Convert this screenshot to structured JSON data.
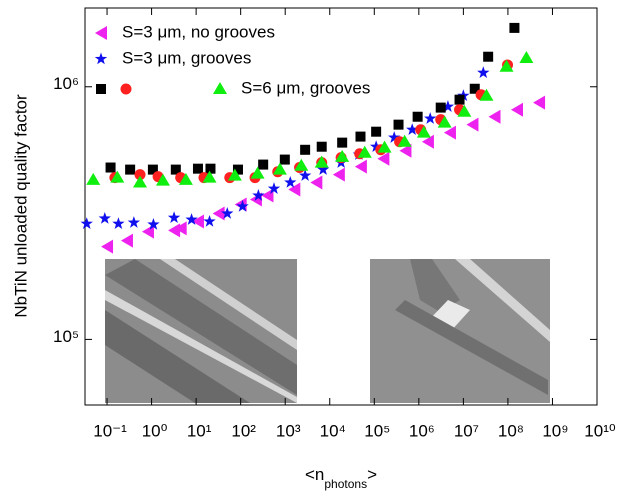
{
  "chart_data": {
    "type": "scatter",
    "y_label": "NbTiN unloaded quality factor",
    "x_label": "<n",
    "x_label_sub": "photons",
    "x_label_end": ">",
    "log_x": true,
    "log_y": true,
    "xlim": [
      0.032,
      10000000000
    ],
    "ylim": [
      55000,
      2050000
    ],
    "xticks": [
      {
        "value": 0.1,
        "label": "10⁻¹"
      },
      {
        "value": 1,
        "label": "10⁰"
      },
      {
        "value": 10,
        "label": "10¹"
      },
      {
        "value": 100,
        "label": "10²"
      },
      {
        "value": 1000,
        "label": "10³"
      },
      {
        "value": 10000,
        "label": "10⁴"
      },
      {
        "value": 100000,
        "label": "10⁵"
      },
      {
        "value": 1000000,
        "label": "10⁶"
      },
      {
        "value": 10000000,
        "label": "10⁷"
      },
      {
        "value": 100000000,
        "label": "10⁸"
      },
      {
        "value": 1000000000,
        "label": "10⁹"
      },
      {
        "value": 10000000000,
        "label": "10¹⁰"
      }
    ],
    "yticks": [
      {
        "value": 100000,
        "label": "10⁵"
      },
      {
        "value": 1000000,
        "label": "10⁶"
      }
    ],
    "series": [
      {
        "name": "S=3 μm, no grooves",
        "color": "#ee22ee",
        "marker": "triangle-left",
        "x": [
          0.1,
          0.28,
          0.83,
          3.2,
          4.5,
          11,
          32,
          100,
          220,
          400,
          1600,
          5000,
          16000,
          50000,
          160000,
          500000,
          1600000,
          5000000,
          16000000,
          50000000,
          160000000,
          500000000
        ],
        "values": [
          233000,
          246000,
          267000,
          270000,
          275000,
          293000,
          315000,
          342000,
          358000,
          371000,
          392000,
          418000,
          449000,
          483000,
          519000,
          558000,
          606000,
          658000,
          708000,
          761000,
          811000,
          865000
        ]
      },
      {
        "name": "S=3 μm, grooves",
        "color": "#1010ee",
        "marker": "star",
        "x": [
          0.035,
          0.089,
          0.18,
          0.4,
          1.1,
          3.2,
          7.9,
          20,
          50,
          110,
          250,
          560,
          1300,
          2800,
          7100,
          18000,
          45000,
          110000,
          280000,
          710000,
          1800000,
          4500000,
          10000000,
          28000000
        ],
        "values": [
          287000,
          301000,
          287000,
          290000,
          285000,
          303000,
          298000,
          293000,
          315000,
          336000,
          371000,
          395000,
          418000,
          445000,
          470000,
          501000,
          539000,
          579000,
          629000,
          676000,
          748000,
          834000,
          921000,
          1136000
        ]
      },
      {
        "color": "#000000",
        "marker": "square",
        "x": [
          0.12,
          0.33,
          1.07,
          3.5,
          11,
          21,
          87,
          320,
          980,
          2800,
          6600,
          19000,
          49000,
          110000,
          350000,
          940000,
          3100000,
          8200000,
          18000000,
          36000000,
          140000000
        ],
        "values": [
          479000,
          470000,
          470000,
          470000,
          474000,
          474000,
          470000,
          492000,
          515000,
          563000,
          579000,
          601000,
          635000,
          664000,
          708000,
          761000,
          827000,
          889000,
          982000,
          1315000,
          1710000
        ]
      },
      {
        "color": "#ff2020",
        "marker": "circle",
        "x": [
          0.15,
          0.55,
          1.4,
          4.5,
          15,
          57,
          210,
          680,
          2100,
          6600,
          18000,
          47000,
          140000,
          370000,
          1100000,
          3100000,
          8200000,
          25000000,
          98000000
        ],
        "values": [
          437000,
          449000,
          441000,
          437000,
          437000,
          437000,
          437000,
          461000,
          479000,
          501000,
          524000,
          543000,
          563000,
          606000,
          676000,
          741000,
          811000,
          930000,
          1220000
        ]
      },
      {
        "name": "S=6 μm, grooves",
        "color": "#10ee10",
        "marker": "triangle-up",
        "x": [
          0.049,
          0.17,
          0.55,
          1.8,
          5.9,
          20,
          74,
          240,
          760,
          2300,
          6600,
          19000,
          61000,
          170000,
          480000,
          1300000,
          3800000,
          10500000,
          33000000,
          93000000,
          260000000
        ],
        "values": [
          428000,
          437000,
          418000,
          425000,
          428000,
          437000,
          445000,
          453000,
          470000,
          487000,
          501000,
          528000,
          548000,
          574000,
          606000,
          658000,
          721000,
          796000,
          921000,
          1200000,
          1300000
        ]
      }
    ]
  }
}
